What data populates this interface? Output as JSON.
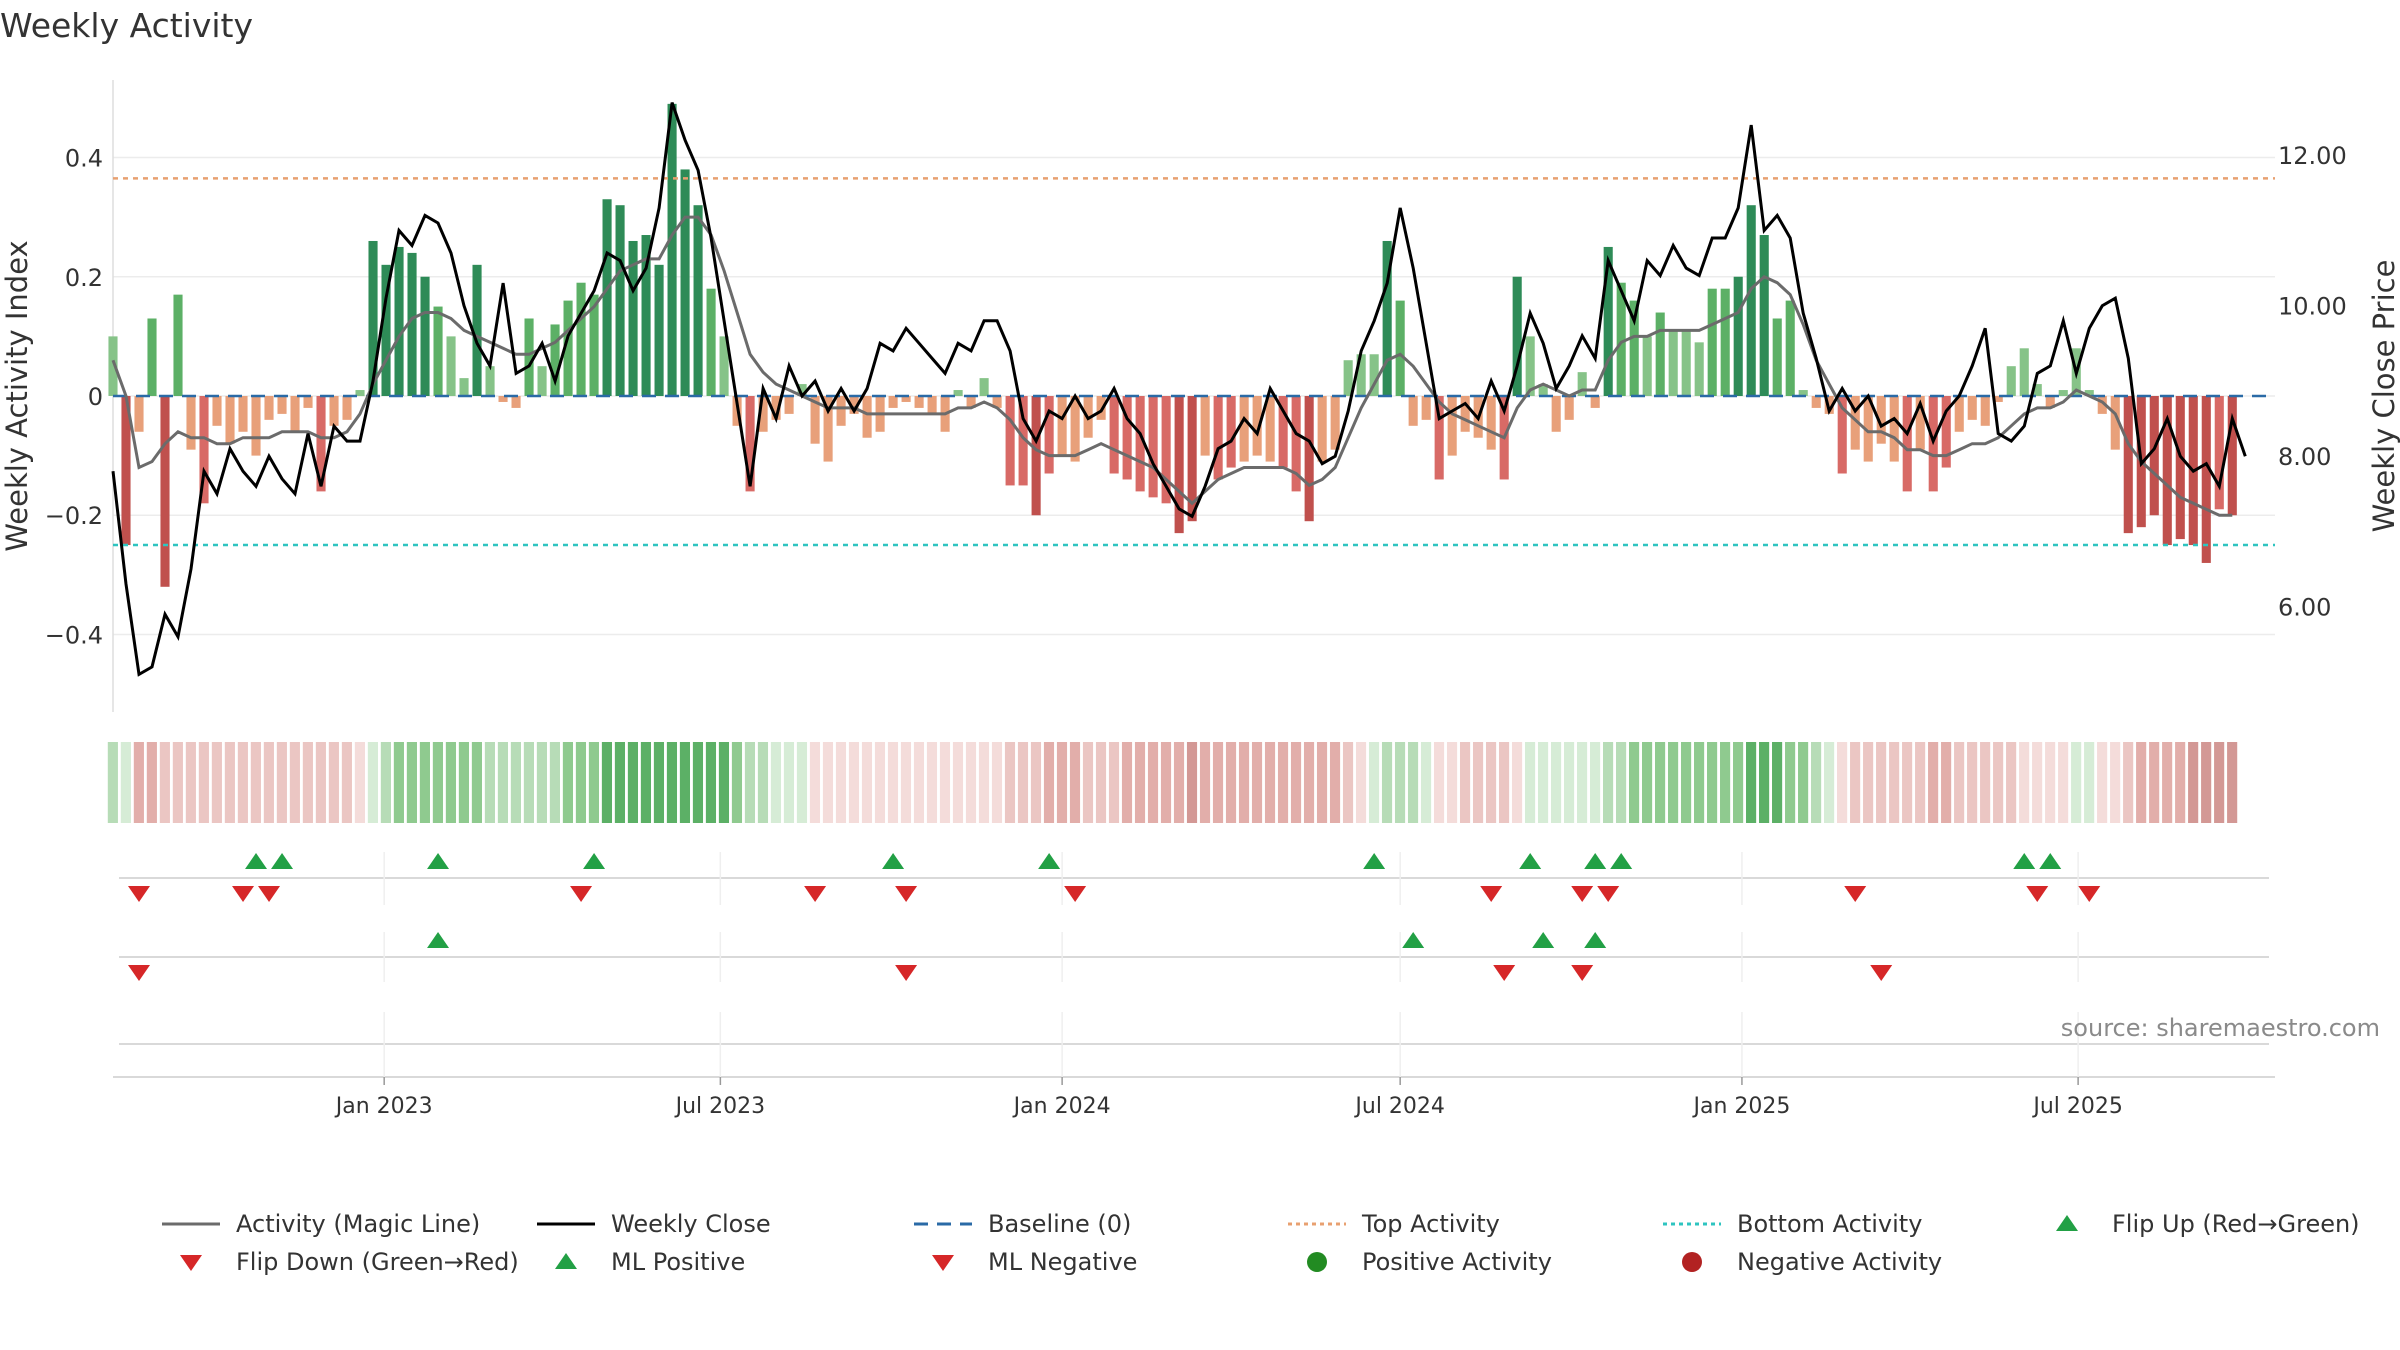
{
  "chart_data": {
    "type": "bar",
    "title": "Weekly Activity",
    "ylabel": "Weekly Activity Index",
    "y2label": "Weekly Close Price",
    "ylim": [
      -0.53,
      0.53
    ],
    "y2lim": [
      4.6,
      13.0
    ],
    "yticks": [
      {
        "value": 0.4,
        "label": "0.4"
      },
      {
        "value": 0.2,
        "label": "0.2"
      },
      {
        "value": 0,
        "label": "0"
      },
      {
        "value": -0.2,
        "label": "−0.2"
      },
      {
        "value": -0.4,
        "label": "−0.4"
      }
    ],
    "y2ticks": [
      {
        "value": 12,
        "label": "12.00"
      },
      {
        "value": 10,
        "label": "10.00"
      },
      {
        "value": 8,
        "label": "8.00"
      },
      {
        "value": 6,
        "label": "6.00"
      }
    ],
    "x_start": "2022-08-08",
    "x_end": "2025-10-15",
    "xticks": [
      {
        "date": "2023-01-01",
        "label": "Jan 2023"
      },
      {
        "date": "2023-07-01",
        "label": "Jul 2023"
      },
      {
        "date": "2024-01-01",
        "label": "Jan 2024"
      },
      {
        "date": "2024-07-01",
        "label": "Jul 2024"
      },
      {
        "date": "2025-01-01",
        "label": "Jan 2025"
      },
      {
        "date": "2025-07-01",
        "label": "Jul 2025"
      }
    ],
    "top_activity": 0.365,
    "bottom_activity": -0.25,
    "baseline": 0,
    "activity": [
      0.1,
      -0.25,
      -0.06,
      0.13,
      -0.32,
      0.17,
      -0.09,
      -0.18,
      -0.05,
      -0.08,
      -0.06,
      -0.1,
      -0.04,
      -0.03,
      -0.06,
      -0.02,
      -0.16,
      -0.05,
      -0.04,
      0.01,
      0.26,
      0.22,
      0.25,
      0.24,
      0.2,
      0.15,
      0.1,
      0.03,
      0.22,
      0.05,
      -0.01,
      -0.02,
      0.13,
      0.05,
      0.12,
      0.16,
      0.19,
      0.17,
      0.33,
      0.32,
      0.26,
      0.27,
      0.22,
      0.49,
      0.38,
      0.32,
      0.18,
      0.1,
      -0.05,
      -0.16,
      -0.06,
      -0.04,
      -0.03,
      0.02,
      -0.08,
      -0.11,
      -0.05,
      -0.03,
      -0.07,
      -0.06,
      -0.02,
      -0.01,
      -0.02,
      -0.03,
      -0.06,
      0.01,
      -0.02,
      0.03,
      -0.02,
      -0.15,
      -0.15,
      -0.2,
      -0.13,
      -0.1,
      -0.11,
      -0.07,
      -0.04,
      -0.13,
      -0.14,
      -0.16,
      -0.17,
      -0.18,
      -0.23,
      -0.21,
      -0.1,
      -0.14,
      -0.12,
      -0.11,
      -0.1,
      -0.11,
      -0.12,
      -0.16,
      -0.21,
      -0.11,
      -0.09,
      0.06,
      0.07,
      0.07,
      0.26,
      0.16,
      -0.05,
      -0.04,
      -0.14,
      -0.1,
      -0.06,
      -0.07,
      -0.09,
      -0.14,
      0.2,
      0.1,
      0.02,
      -0.06,
      -0.04,
      0.04,
      -0.02,
      0.25,
      0.19,
      0.16,
      0.1,
      0.14,
      0.11,
      0.11,
      0.09,
      0.18,
      0.18,
      0.2,
      0.32,
      0.27,
      0.13,
      0.16,
      0.01,
      -0.02,
      -0.03,
      -0.13,
      -0.09,
      -0.11,
      -0.08,
      -0.11,
      -0.16,
      -0.09,
      -0.16,
      -0.12,
      -0.06,
      -0.04,
      -0.05,
      -0.01,
      0.05,
      0.08,
      0.02,
      -0.02,
      0.01,
      0.08,
      0.01,
      -0.03,
      -0.09,
      -0.23,
      -0.22,
      -0.2,
      -0.25,
      -0.24,
      -0.25,
      -0.28,
      -0.19,
      -0.2
    ],
    "magic_line": [
      0.06,
      0.0,
      -0.12,
      -0.11,
      -0.08,
      -0.06,
      -0.07,
      -0.07,
      -0.08,
      -0.08,
      -0.07,
      -0.07,
      -0.07,
      -0.06,
      -0.06,
      -0.06,
      -0.07,
      -0.07,
      -0.06,
      -0.03,
      0.02,
      0.06,
      0.1,
      0.13,
      0.14,
      0.14,
      0.13,
      0.11,
      0.1,
      0.09,
      0.08,
      0.07,
      0.07,
      0.08,
      0.09,
      0.11,
      0.13,
      0.15,
      0.18,
      0.21,
      0.22,
      0.23,
      0.23,
      0.27,
      0.3,
      0.3,
      0.27,
      0.21,
      0.14,
      0.07,
      0.04,
      0.02,
      0.01,
      0.0,
      -0.01,
      -0.02,
      -0.02,
      -0.02,
      -0.03,
      -0.03,
      -0.03,
      -0.03,
      -0.03,
      -0.03,
      -0.03,
      -0.02,
      -0.02,
      -0.01,
      -0.02,
      -0.04,
      -0.07,
      -0.09,
      -0.1,
      -0.1,
      -0.1,
      -0.09,
      -0.08,
      -0.09,
      -0.1,
      -0.11,
      -0.12,
      -0.14,
      -0.16,
      -0.18,
      -0.16,
      -0.14,
      -0.13,
      -0.12,
      -0.12,
      -0.12,
      -0.12,
      -0.13,
      -0.15,
      -0.14,
      -0.12,
      -0.07,
      -0.02,
      0.02,
      0.06,
      0.07,
      0.05,
      0.02,
      -0.01,
      -0.03,
      -0.04,
      -0.05,
      -0.06,
      -0.07,
      -0.02,
      0.01,
      0.02,
      0.01,
      0.0,
      0.01,
      0.01,
      0.06,
      0.09,
      0.1,
      0.1,
      0.11,
      0.11,
      0.11,
      0.11,
      0.12,
      0.13,
      0.14,
      0.18,
      0.2,
      0.19,
      0.17,
      0.12,
      0.06,
      0.02,
      -0.02,
      -0.04,
      -0.06,
      -0.06,
      -0.07,
      -0.09,
      -0.09,
      -0.1,
      -0.1,
      -0.09,
      -0.08,
      -0.08,
      -0.07,
      -0.05,
      -0.03,
      -0.02,
      -0.02,
      -0.01,
      0.01,
      0.0,
      -0.01,
      -0.03,
      -0.08,
      -0.11,
      -0.13,
      -0.15,
      -0.17,
      -0.18,
      -0.19,
      -0.2,
      -0.2
    ],
    "weekly_close": [
      7.8,
      6.3,
      5.1,
      5.2,
      5.9,
      5.6,
      6.5,
      7.8,
      7.5,
      8.1,
      7.8,
      7.6,
      8.0,
      7.7,
      7.5,
      8.3,
      7.6,
      8.4,
      8.2,
      8.2,
      9.0,
      10.1,
      11.0,
      10.8,
      11.2,
      11.1,
      10.7,
      10.0,
      9.5,
      9.2,
      10.3,
      9.1,
      9.2,
      9.5,
      9.0,
      9.6,
      9.9,
      10.2,
      10.7,
      10.6,
      10.2,
      10.5,
      11.3,
      12.7,
      12.2,
      11.8,
      10.9,
      9.8,
      8.7,
      7.6,
      8.9,
      8.5,
      9.2,
      8.8,
      9.0,
      8.6,
      8.9,
      8.6,
      8.9,
      9.5,
      9.4,
      9.7,
      9.5,
      9.3,
      9.1,
      9.5,
      9.4,
      9.8,
      9.8,
      9.4,
      8.5,
      8.2,
      8.6,
      8.5,
      8.8,
      8.5,
      8.6,
      8.9,
      8.5,
      8.3,
      7.9,
      7.6,
      7.3,
      7.2,
      7.6,
      8.1,
      8.2,
      8.5,
      8.3,
      8.9,
      8.6,
      8.3,
      8.2,
      7.9,
      8.0,
      8.6,
      9.4,
      9.8,
      10.3,
      11.3,
      10.5,
      9.5,
      8.5,
      8.6,
      8.7,
      8.5,
      9.0,
      8.6,
      9.2,
      9.9,
      9.5,
      8.9,
      9.2,
      9.6,
      9.3,
      10.6,
      10.2,
      9.8,
      10.6,
      10.4,
      10.8,
      10.5,
      10.4,
      10.9,
      10.9,
      11.3,
      12.4,
      11.0,
      11.2,
      10.9,
      9.9,
      9.3,
      8.6,
      8.9,
      8.6,
      8.8,
      8.4,
      8.5,
      8.3,
      8.7,
      8.2,
      8.6,
      8.8,
      9.2,
      9.7,
      8.3,
      8.2,
      8.4,
      9.1,
      9.2,
      9.8,
      9.1,
      9.7,
      10.0,
      10.1,
      9.3,
      7.9,
      8.1,
      8.5,
      8.0,
      7.8,
      7.9,
      7.6,
      8.5,
      8.0
    ],
    "flip_up": [
      "2022-10-24",
      "2022-11-07",
      "2023-01-30",
      "2023-04-24",
      "2023-10-02",
      "2023-12-25",
      "2024-06-17",
      "2024-09-09",
      "2024-10-14",
      "2024-10-28",
      "2025-06-02",
      "2025-06-16"
    ],
    "flip_down": [
      "2022-08-22",
      "2022-10-17",
      "2022-10-31",
      "2023-04-17",
      "2023-08-21",
      "2023-10-09",
      "2024-01-08",
      "2024-08-19",
      "2024-10-07",
      "2024-10-21",
      "2025-03-03",
      "2025-06-09",
      "2025-07-07"
    ],
    "ml_positive": [
      "2023-01-30",
      "2024-07-08",
      "2024-09-16",
      "2024-10-14"
    ],
    "ml_negative": [
      "2022-08-22",
      "2023-10-09",
      "2024-08-26",
      "2024-10-07",
      "2025-03-17"
    ],
    "positive_color": "#1a7a3c",
    "negative_color": "#b22222",
    "line_color": "#6b6b6b",
    "close_color": "#000000",
    "baseline_color": "#2a6aa6",
    "top_color": "#e8a070",
    "bottom_color": "#2ec4c0",
    "legend": [
      {
        "label": "Activity (Magic Line)",
        "marker": "line-gray"
      },
      {
        "label": "Weekly Close",
        "marker": "line-black"
      },
      {
        "label": "Baseline (0)",
        "marker": "dash-blue"
      },
      {
        "label": "Top Activity",
        "marker": "dot-orange"
      },
      {
        "label": "Bottom Activity",
        "marker": "dot-cyan"
      },
      {
        "label": "Flip Up (Red→Green)",
        "marker": "triangle-up-green"
      },
      {
        "label": "Flip Down (Green→Red)",
        "marker": "triangle-down-red"
      },
      {
        "label": "ML Positive",
        "marker": "triangle-up-green"
      },
      {
        "label": "ML Negative",
        "marker": "triangle-down-red"
      },
      {
        "label": "Positive Activity",
        "marker": "circle-green"
      },
      {
        "label": "Negative Activity",
        "marker": "circle-red"
      }
    ],
    "source": "source: sharemaestro.com"
  }
}
